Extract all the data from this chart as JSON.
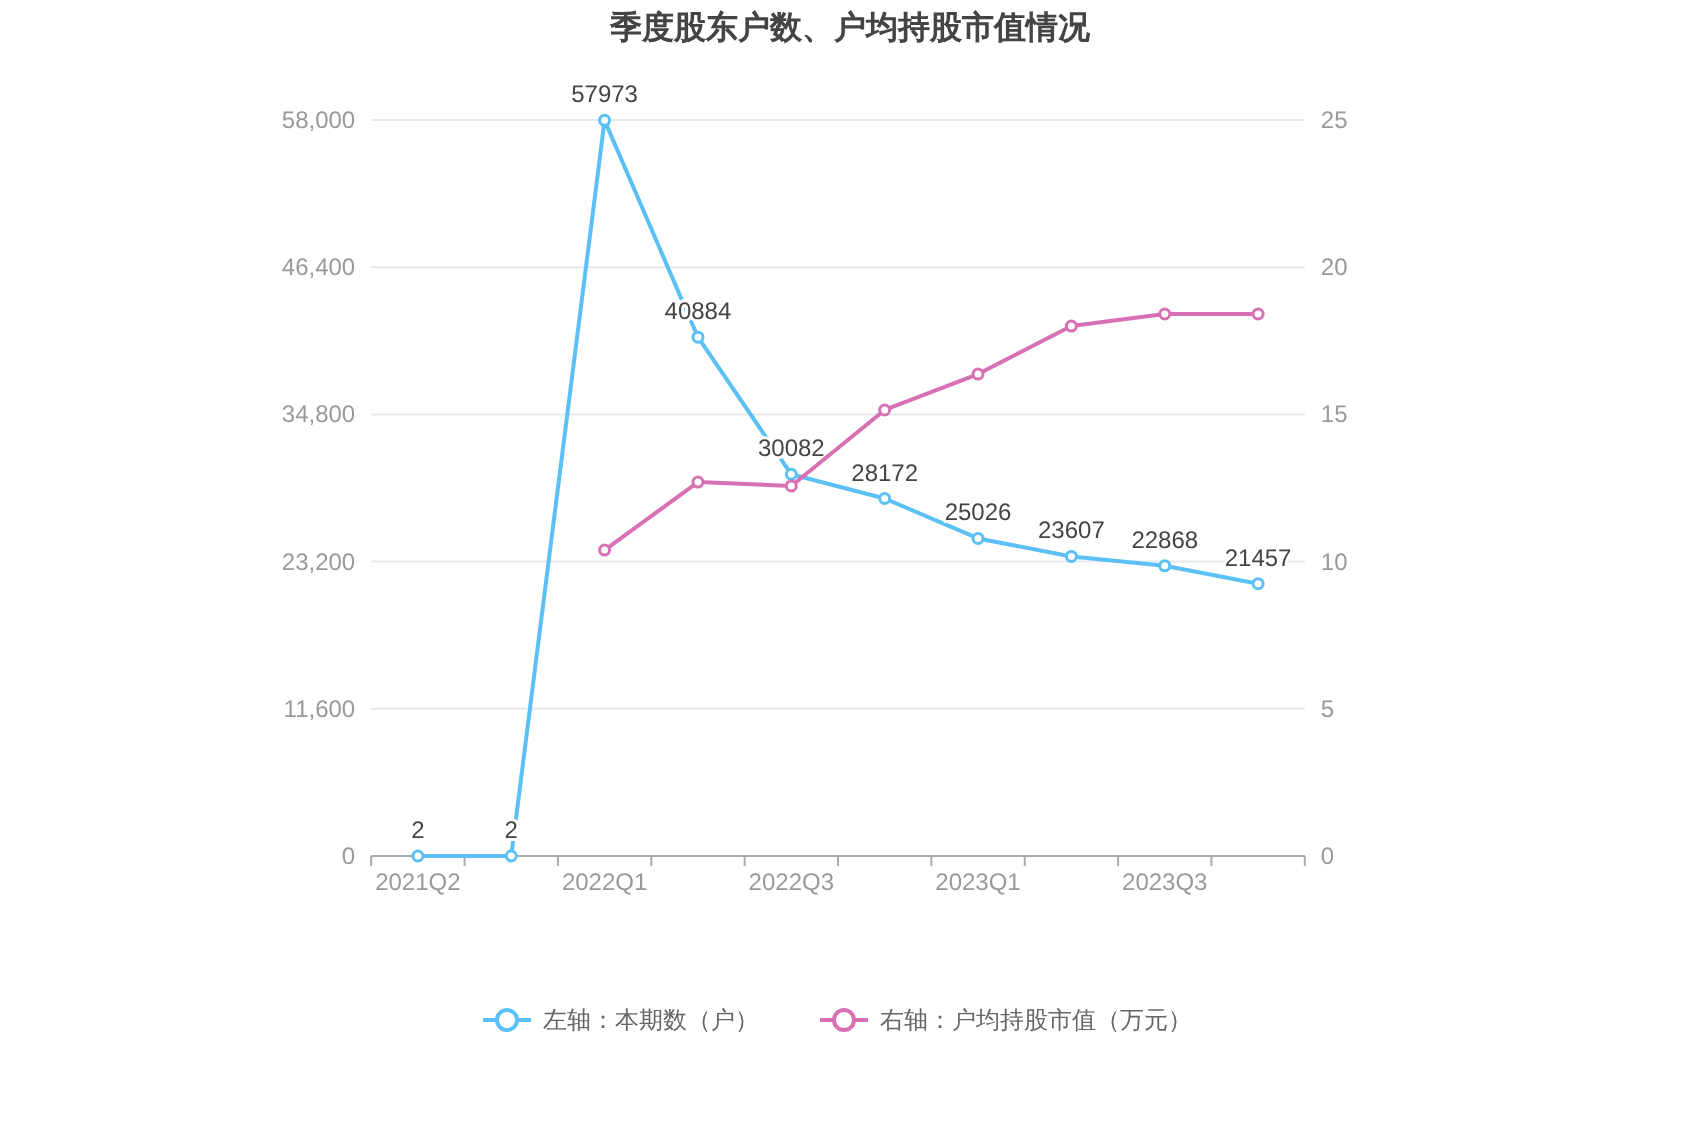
{
  "chart_data": {
    "type": "line",
    "title": "季度股东户数、户均持股市值情况",
    "categories": [
      "2021Q2",
      null,
      "2022Q1",
      null,
      "2022Q3",
      null,
      "2023Q1",
      null,
      "2023Q3",
      null
    ],
    "series": [
      {
        "name": "左轴：本期数（户）",
        "color": "#5bc0f5",
        "values": [
          2,
          2,
          57973,
          40884,
          30082,
          28172,
          25026,
          23607,
          22868,
          21457
        ],
        "value_labels": [
          "2",
          "2",
          "57973",
          "40884",
          "30082",
          "28172",
          "25026",
          "23607",
          "22868",
          "21457"
        ]
      },
      {
        "name": "右轴：户均持股市值（万元）",
        "color": "#d870b4",
        "axis": "y2",
        "values": [
          null,
          null,
          10.39,
          12.7,
          12.57,
          15.15,
          16.37,
          18.0,
          18.41,
          18.41
        ]
      }
    ],
    "ylim": [
      0,
      58000
    ],
    "yticks": [
      0,
      {
        "value": 11600,
        "label": "11,600"
      },
      {
        "value": 23200,
        "label": "23,200"
      },
      {
        "value": 34800,
        "label": "34,800"
      },
      {
        "value": 46400,
        "label": "46,400"
      },
      {
        "value": 58000,
        "label": "58,000"
      }
    ],
    "y2lim": [
      0,
      25
    ],
    "y2ticks": [
      0,
      5,
      10,
      15,
      20,
      25
    ],
    "grid": "y",
    "legend": "bottom",
    "marker": "circle",
    "line_style": "solid"
  }
}
